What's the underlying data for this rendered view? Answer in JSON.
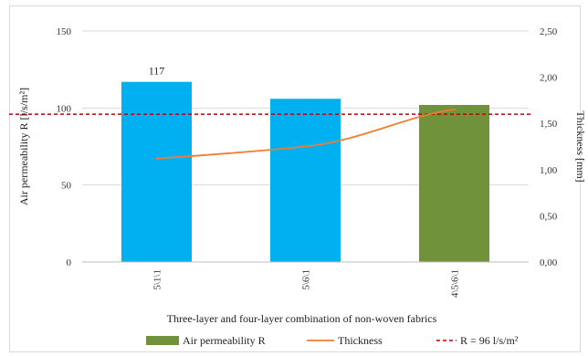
{
  "chart_data": {
    "type": "bar",
    "categories": [
      "5\\1\\1",
      "5\\6\\1",
      "4\\5\\6\\1"
    ],
    "series": [
      {
        "name": "Air permeability R",
        "kind": "bar",
        "axis": "left",
        "values": [
          117,
          106,
          102
        ],
        "point_colors": [
          "#00b0f0",
          "#00b0f0",
          "#70923a"
        ]
      },
      {
        "name": "Thickness",
        "kind": "line",
        "axis": "right",
        "values": [
          1.12,
          1.25,
          1.65
        ],
        "color": "#ed7d31"
      }
    ],
    "data_labels": [
      {
        "category_index": 0,
        "text": "117"
      }
    ],
    "reference_line": {
      "name": "R = 96 l/s/m²",
      "value": 96,
      "axis": "left",
      "color": "#c00000",
      "style": "dashed"
    },
    "xlabel": "Three-layer and four-layer combination of non-woven fabrics",
    "ylabel": "Air permeability R [l/s/m²]",
    "y2label": "Thickness [mm]",
    "ylim": [
      0,
      150
    ],
    "y_ticks": [
      0,
      50,
      100,
      150
    ],
    "y_tick_labels": [
      "0",
      "50",
      "100",
      "150"
    ],
    "y2lim": [
      0,
      2.5
    ],
    "y2_ticks": [
      0,
      0.5,
      1,
      1.5,
      2,
      2.5
    ],
    "y2_tick_labels": [
      "0,00",
      "0,50",
      "1,00",
      "1,50",
      "2,00",
      "2,50"
    ],
    "grid": true,
    "legend_position": "bottom",
    "legend": [
      {
        "label": "Air permeability R",
        "marker": "bar",
        "color": "#70923a"
      },
      {
        "label": "Thickness",
        "marker": "line",
        "color": "#ed7d31"
      },
      {
        "label": "R = 96 l/s/m²",
        "marker": "dashed-line",
        "color": "#c00000"
      }
    ]
  }
}
